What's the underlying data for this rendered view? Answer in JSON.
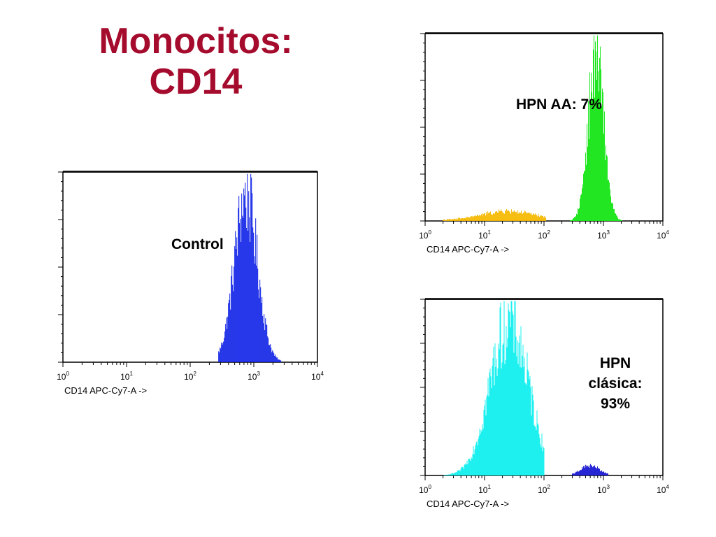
{
  "title_lines": [
    "Monocitos:",
    "CD14"
  ],
  "chart_data": [
    {
      "id": "control",
      "type": "histogram",
      "annotation": [
        "Control"
      ],
      "xlabel": "CD14 APC-Cy7-A ->",
      "xscale": "log",
      "xlim": [
        1,
        10000
      ],
      "xticks": [
        {
          "base": "10",
          "exp": "0"
        },
        {
          "base": "10",
          "exp": "1"
        },
        {
          "base": "10",
          "exp": "2"
        },
        {
          "base": "10",
          "exp": "3"
        },
        {
          "base": "10",
          "exp": "4"
        }
      ],
      "series": [
        {
          "color": "#0a1ee6",
          "center": 750,
          "width": 0.18,
          "amplitude": 1.0,
          "range": [
            280,
            2700
          ]
        }
      ]
    },
    {
      "id": "hpn-aa",
      "type": "histogram",
      "annotation": [
        "HPN AA: 7%"
      ],
      "xlabel": "CD14 APC-Cy7-A ->",
      "xscale": "log",
      "xlim": [
        1,
        10000
      ],
      "xticks": [
        {
          "base": "10",
          "exp": "0"
        },
        {
          "base": "10",
          "exp": "1"
        },
        {
          "base": "10",
          "exp": "2"
        },
        {
          "base": "10",
          "exp": "3"
        },
        {
          "base": "10",
          "exp": "4"
        }
      ],
      "series": [
        {
          "color": "#f5b800",
          "center": 25,
          "width": 0.45,
          "amplitude": 0.055,
          "range": [
            2,
            110
          ]
        },
        {
          "color": "#1ee61e",
          "center": 750,
          "width": 0.13,
          "amplitude": 1.0,
          "range": [
            110,
            3000
          ]
        }
      ]
    },
    {
      "id": "hpn-clasica",
      "type": "histogram",
      "annotation": [
        "HPN",
        "clásica:",
        "93%"
      ],
      "xlabel": "CD14 APC-Cy7-A ->",
      "xscale": "log",
      "xlim": [
        1,
        10000
      ],
      "xticks": [
        {
          "base": "10",
          "exp": "0"
        },
        {
          "base": "10",
          "exp": "1"
        },
        {
          "base": "10",
          "exp": "2"
        },
        {
          "base": "10",
          "exp": "3"
        },
        {
          "base": "10",
          "exp": "4"
        }
      ],
      "series": [
        {
          "color": "#1ef0f0",
          "center": 26,
          "width": 0.32,
          "amplitude": 1.0,
          "range": [
            1,
            100
          ]
        },
        {
          "color": "#1a1ad2",
          "center": 600,
          "width": 0.15,
          "amplitude": 0.06,
          "range": [
            300,
            1200
          ]
        }
      ]
    }
  ]
}
